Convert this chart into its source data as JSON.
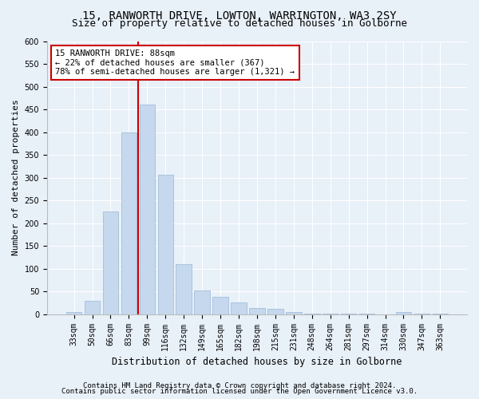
{
  "title1": "15, RANWORTH DRIVE, LOWTON, WARRINGTON, WA3 2SY",
  "title2": "Size of property relative to detached houses in Golborne",
  "xlabel": "Distribution of detached houses by size in Golborne",
  "ylabel": "Number of detached properties",
  "categories": [
    "33sqm",
    "50sqm",
    "66sqm",
    "83sqm",
    "99sqm",
    "116sqm",
    "132sqm",
    "149sqm",
    "165sqm",
    "182sqm",
    "198sqm",
    "215sqm",
    "231sqm",
    "248sqm",
    "264sqm",
    "281sqm",
    "297sqm",
    "314sqm",
    "330sqm",
    "347sqm",
    "363sqm"
  ],
  "values": [
    5,
    30,
    225,
    400,
    460,
    307,
    110,
    52,
    38,
    26,
    13,
    12,
    5,
    2,
    1,
    1,
    1,
    0,
    4,
    1,
    1
  ],
  "bar_color": "#c5d8ed",
  "bar_edge_color": "#aac4df",
  "vline_color": "#cc0000",
  "annotation_text": "15 RANWORTH DRIVE: 88sqm\n← 22% of detached houses are smaller (367)\n78% of semi-detached houses are larger (1,321) →",
  "annotation_box_color": "#ffffff",
  "annotation_box_edge": "#cc0000",
  "ylim": [
    0,
    600
  ],
  "yticks": [
    0,
    50,
    100,
    150,
    200,
    250,
    300,
    350,
    400,
    450,
    500,
    550,
    600
  ],
  "footer1": "Contains HM Land Registry data © Crown copyright and database right 2024.",
  "footer2": "Contains public sector information licensed under the Open Government Licence v3.0.",
  "bg_color": "#e8f0f8",
  "plot_bg_color": "#e8f0f8",
  "title1_fontsize": 10,
  "title2_fontsize": 9,
  "xlabel_fontsize": 8.5,
  "ylabel_fontsize": 8,
  "tick_fontsize": 7,
  "annotation_fontsize": 7.5,
  "footer_fontsize": 6.5
}
